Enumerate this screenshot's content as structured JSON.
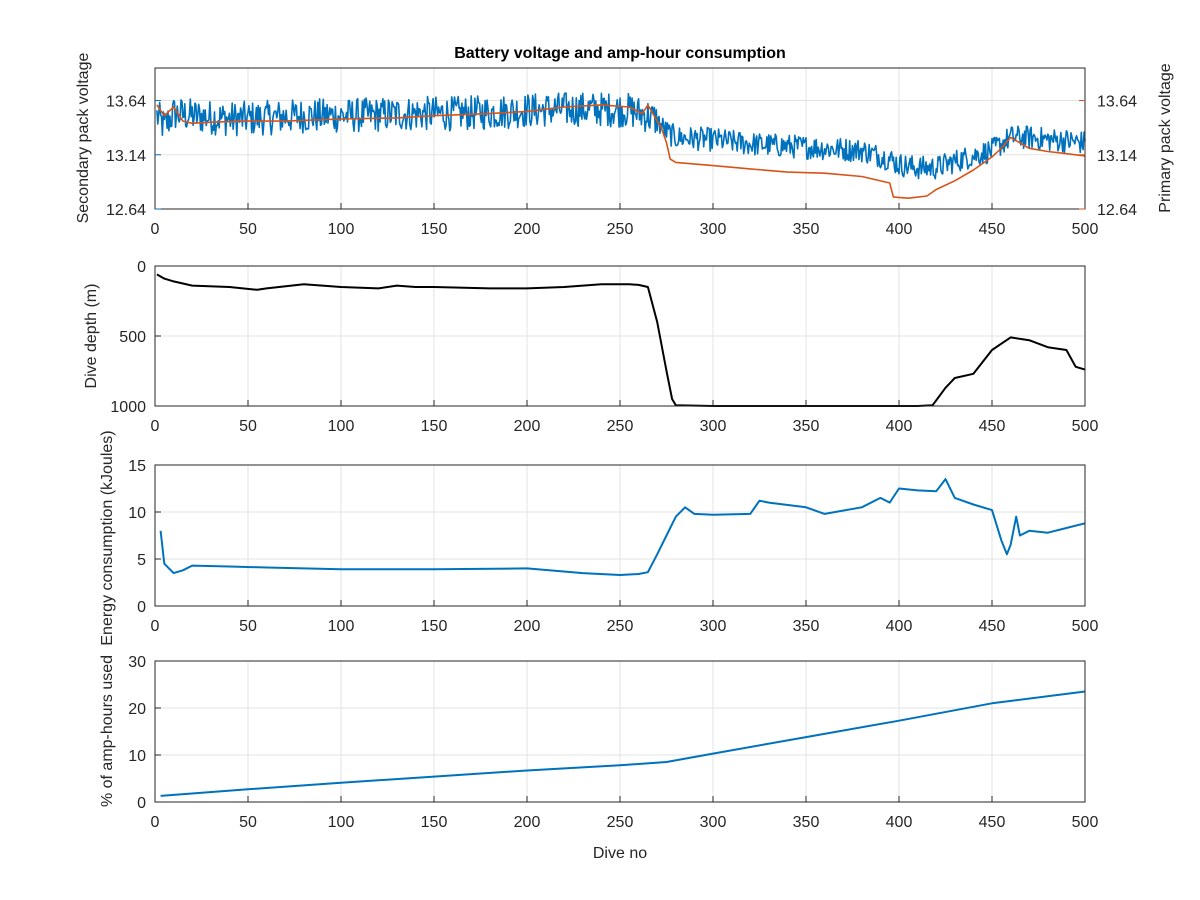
{
  "colors": {
    "secondary": "#0072BD",
    "primary": "#D95319",
    "depth": "#000000",
    "energy": "#0072BD",
    "amphours": "#0072BD",
    "grid": "#e3e3e3",
    "axis": "#262626"
  },
  "chart_data": [
    {
      "type": "line",
      "title": "Battery voltage and amp-hour consumption",
      "xlabel": "",
      "ylabel_left": "Secondary pack voltage",
      "ylabel_right": "Primary pack voltage",
      "xlim": [
        0,
        500
      ],
      "ylim": [
        12.64,
        13.94
      ],
      "xticks": [
        "0",
        "50",
        "100",
        "150",
        "200",
        "250",
        "300",
        "350",
        "400",
        "450",
        "500"
      ],
      "yticks_left": [
        "12.64",
        "13.14",
        "13.64"
      ],
      "yticks_right": [
        "12.64",
        "13.14",
        "13.64"
      ],
      "grid": true,
      "series": [
        {
          "axis": "left",
          "noisy": true,
          "x": [
            1,
            5,
            10,
            20,
            40,
            60,
            80,
            100,
            120,
            140,
            160,
            180,
            200,
            220,
            240,
            255,
            265,
            270,
            275,
            280,
            300,
            320,
            340,
            360,
            380,
            395,
            400,
            410,
            420,
            430,
            440,
            450,
            460,
            470,
            480,
            490,
            500
          ],
          "y": [
            13.5,
            13.4,
            13.52,
            13.5,
            13.47,
            13.48,
            13.5,
            13.5,
            13.51,
            13.52,
            13.52,
            13.53,
            13.55,
            13.56,
            13.56,
            13.55,
            13.5,
            13.45,
            13.35,
            13.3,
            13.28,
            13.24,
            13.22,
            13.2,
            13.18,
            13.1,
            13.05,
            13.02,
            13.02,
            13.08,
            13.13,
            13.18,
            13.3,
            13.3,
            13.28,
            13.27,
            13.25
          ]
        },
        {
          "axis": "right",
          "noisy": false,
          "x": [
            1,
            5,
            10,
            15,
            20,
            30,
            50,
            70,
            100,
            130,
            150,
            180,
            200,
            220,
            240,
            255,
            262,
            265,
            270,
            272,
            275,
            277,
            280,
            300,
            320,
            340,
            360,
            380,
            395,
            397,
            405,
            415,
            420,
            430,
            440,
            450,
            455,
            460,
            470,
            480,
            490,
            500
          ],
          "y": [
            13.6,
            13.5,
            13.58,
            13.45,
            13.43,
            13.44,
            13.45,
            13.45,
            13.47,
            13.48,
            13.5,
            13.52,
            13.54,
            13.58,
            13.6,
            13.58,
            13.52,
            13.6,
            13.45,
            13.4,
            13.25,
            13.1,
            13.07,
            13.04,
            13.01,
            12.98,
            12.97,
            12.94,
            12.88,
            12.75,
            12.74,
            12.76,
            12.82,
            12.9,
            13.0,
            13.12,
            13.2,
            13.3,
            13.2,
            13.17,
            13.15,
            13.13
          ]
        }
      ]
    },
    {
      "type": "line",
      "title": "",
      "xlabel": "",
      "ylabel": "Dive depth (m)",
      "xlim": [
        0,
        500
      ],
      "ylim": [
        0,
        1000
      ],
      "y_reversed": true,
      "xticks": [
        "0",
        "50",
        "100",
        "150",
        "200",
        "250",
        "300",
        "350",
        "400",
        "450",
        "500"
      ],
      "yticks": [
        "0",
        "500",
        "1000"
      ],
      "grid": true,
      "series": [
        {
          "x": [
            1,
            5,
            10,
            20,
            40,
            55,
            60,
            80,
            100,
            120,
            130,
            140,
            150,
            180,
            200,
            220,
            240,
            255,
            260,
            265,
            270,
            275,
            278,
            280,
            300,
            350,
            400,
            410,
            418,
            420,
            425,
            430,
            440,
            450,
            460,
            470,
            480,
            490,
            495,
            500
          ],
          "y": [
            60,
            90,
            110,
            140,
            150,
            170,
            160,
            130,
            150,
            160,
            140,
            150,
            150,
            160,
            160,
            150,
            130,
            130,
            135,
            150,
            400,
            750,
            950,
            995,
            1000,
            1000,
            1000,
            1000,
            995,
            960,
            870,
            800,
            770,
            600,
            510,
            530,
            580,
            600,
            720,
            740
          ]
        }
      ]
    },
    {
      "type": "line",
      "title": "",
      "xlabel": "",
      "ylabel": "Energy consumption (kJoules)",
      "xlim": [
        0,
        500
      ],
      "ylim": [
        0,
        15
      ],
      "xticks": [
        "0",
        "50",
        "100",
        "150",
        "200",
        "250",
        "300",
        "350",
        "400",
        "450",
        "500"
      ],
      "yticks": [
        "0",
        "5",
        "10",
        "15"
      ],
      "grid": true,
      "series": [
        {
          "x": [
            3,
            5,
            10,
            15,
            20,
            40,
            60,
            80,
            100,
            150,
            200,
            230,
            250,
            260,
            265,
            270,
            275,
            280,
            285,
            290,
            300,
            320,
            325,
            330,
            350,
            360,
            380,
            390,
            395,
            400,
            410,
            420,
            425,
            430,
            440,
            450,
            455,
            458,
            460,
            463,
            465,
            470,
            480,
            490,
            500
          ],
          "y": [
            8,
            4.5,
            3.5,
            3.8,
            4.3,
            4.2,
            4.1,
            4.0,
            3.9,
            3.9,
            4.0,
            3.5,
            3.3,
            3.4,
            3.6,
            5.5,
            7.5,
            9.5,
            10.5,
            9.8,
            9.7,
            9.8,
            11.2,
            11.0,
            10.5,
            9.8,
            10.5,
            11.5,
            11.0,
            12.5,
            12.3,
            12.2,
            13.5,
            11.5,
            10.8,
            10.2,
            7.0,
            5.5,
            6.5,
            9.5,
            7.5,
            8.0,
            7.8,
            8.3,
            8.8
          ]
        }
      ]
    },
    {
      "type": "line",
      "title": "",
      "xlabel": "Dive no",
      "ylabel": "% of amp-hours used",
      "xlim": [
        0,
        500
      ],
      "ylim": [
        0,
        30
      ],
      "xticks": [
        "0",
        "50",
        "100",
        "150",
        "200",
        "250",
        "300",
        "350",
        "400",
        "450",
        "500"
      ],
      "yticks": [
        "0",
        "10",
        "20",
        "30"
      ],
      "grid": true,
      "series": [
        {
          "x": [
            3,
            50,
            100,
            150,
            200,
            250,
            275,
            300,
            350,
            400,
            450,
            500
          ],
          "y": [
            1.3,
            2.7,
            4.1,
            5.4,
            6.7,
            7.8,
            8.5,
            10.3,
            13.8,
            17.3,
            21.0,
            23.5
          ]
        }
      ]
    }
  ]
}
